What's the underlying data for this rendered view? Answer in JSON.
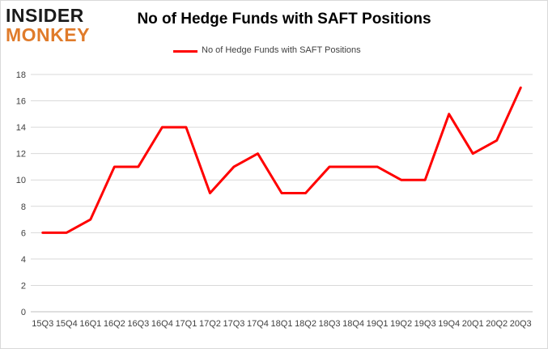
{
  "logo": {
    "line1": "INSIDER",
    "line2": "MONKEY",
    "line2_color": "#e07b2a"
  },
  "chart_data": {
    "type": "line",
    "title": "No of Hedge Funds with SAFT Positions",
    "xlabel": "",
    "ylabel": "",
    "categories": [
      "15Q3",
      "15Q4",
      "16Q1",
      "16Q2",
      "16Q3",
      "16Q4",
      "17Q1",
      "17Q2",
      "17Q3",
      "17Q4",
      "18Q1",
      "18Q2",
      "18Q3",
      "18Q4",
      "19Q1",
      "19Q2",
      "19Q3",
      "19Q4",
      "20Q1",
      "20Q2",
      "20Q3"
    ],
    "series": [
      {
        "name": "No of Hedge Funds with SAFT Positions",
        "values": [
          6,
          6,
          7,
          11,
          11,
          14,
          14,
          9,
          11,
          12,
          9,
          9,
          11,
          11,
          11,
          10,
          10,
          15,
          12,
          13,
          17
        ],
        "color": "#ff0000"
      }
    ],
    "ylim": [
      0,
      18
    ],
    "yticks": [
      0,
      2,
      4,
      6,
      8,
      10,
      12,
      14,
      16,
      18
    ],
    "grid": true,
    "legend_position": "top"
  }
}
